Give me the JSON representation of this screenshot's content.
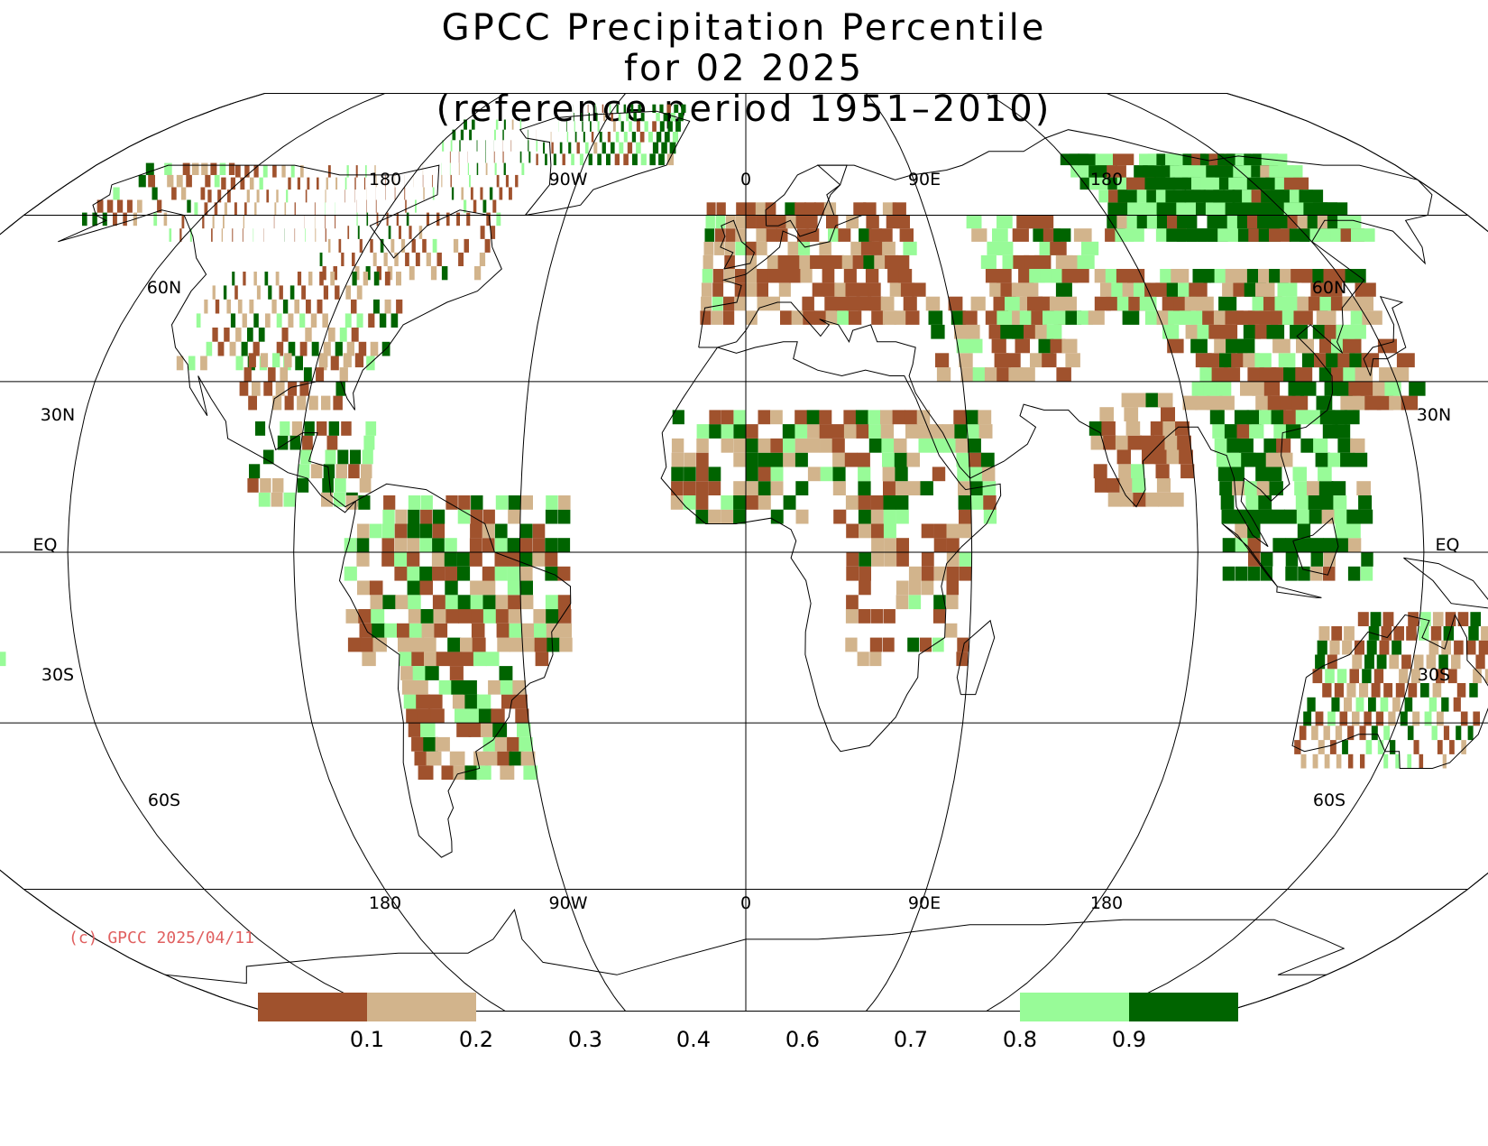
{
  "title": {
    "line1": "GPCC Precipitation Percentile",
    "line2": "for 02 2025",
    "line3": "(reference period 1951–2010)"
  },
  "top_lon_labels": [
    "180",
    "90W",
    "0",
    "90E",
    "180"
  ],
  "bottom_lon_labels": [
    "180",
    "90W",
    "0",
    "90E",
    "180"
  ],
  "lat_labels": [
    "60N",
    "30N",
    "EQ",
    "30S",
    "60S"
  ],
  "credit": "(c) GPCC 2025/04/11",
  "colorbar": {
    "labels": [
      "0.1",
      "0.2",
      "0.3",
      "0.4",
      "0.6",
      "0.7",
      "0.8",
      "0.9"
    ],
    "colors": {
      "below_0_1": "#a0522d",
      "0_1_to_0_2": "#d2b48c",
      "0_8_to_0_9": "#98fb98",
      "above_0_9": "#006400"
    }
  },
  "map": {
    "projection": "Robinson",
    "central_longitude": 0,
    "graticule_longitudes": [
      -180,
      -135,
      -90,
      -45,
      0,
      45,
      90,
      135,
      180
    ],
    "graticule_latitudes": [
      -60,
      -30,
      0,
      30,
      60
    ],
    "categories": {
      "very_dry": "#a0522d",
      "dry": "#d2b48c",
      "wet": "#98fb98",
      "very_wet": "#006400"
    },
    "region_fill_summary": [
      {
        "region": "Greenland",
        "category": "very_wet"
      },
      {
        "region": "Siberia",
        "category": "very_wet"
      },
      {
        "region": "Alaska-Canada",
        "category": "very_dry"
      },
      {
        "region": "Eastern Europe",
        "category": "very_dry"
      },
      {
        "region": "India",
        "category": "very_dry"
      },
      {
        "region": "Sahel",
        "category": "very_wet"
      },
      {
        "region": "Northern Brazil",
        "category": "very_dry"
      },
      {
        "region": "Southeast Asia",
        "category": "very_wet"
      },
      {
        "region": "Australia",
        "category": "very_dry"
      }
    ]
  }
}
